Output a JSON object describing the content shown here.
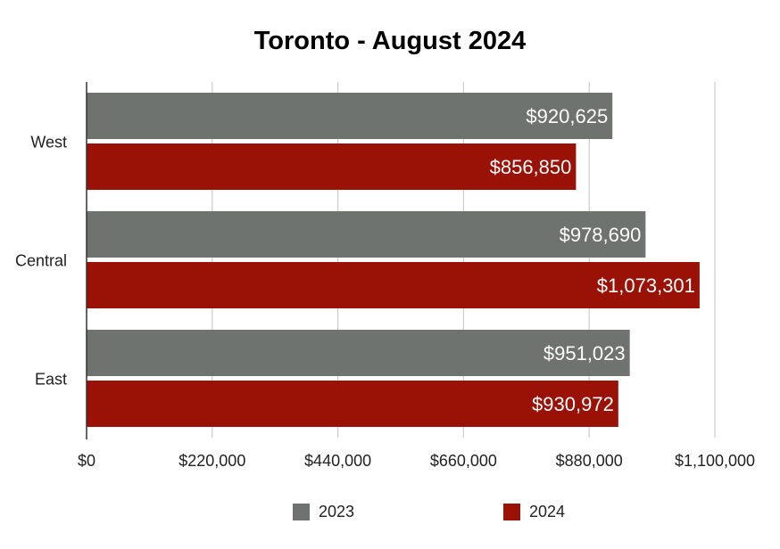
{
  "chart_data": {
    "type": "bar",
    "orientation": "horizontal",
    "title": "Toronto - August 2024",
    "categories": [
      "West",
      "Central",
      "East"
    ],
    "series": [
      {
        "name": "2023",
        "color": "#6f7370",
        "values": [
          920625,
          978690,
          951023
        ],
        "labels": [
          "$920,625",
          "$978,690",
          "$951,023"
        ]
      },
      {
        "name": "2024",
        "color": "#9a1106",
        "values": [
          856850,
          1073301,
          930972
        ],
        "labels": [
          "$856,850",
          "$1,073,301",
          "$930,972"
        ]
      }
    ],
    "xlim": [
      0,
      1100000
    ],
    "xticks": [
      0,
      220000,
      440000,
      660000,
      880000,
      1100000
    ],
    "xtick_labels": [
      "$0",
      "$220,000",
      "$440,000",
      "$660,000",
      "$880,000",
      "$1,100,000"
    ],
    "grid": true,
    "legend_position": "bottom"
  }
}
